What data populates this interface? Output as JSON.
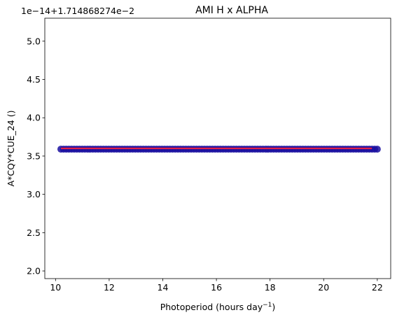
{
  "chart_data": {
    "type": "scatter",
    "title": "AMI H x ALPHA",
    "xlabel": "Photoperiod (hours day",
    "xlabel_sup": "−1",
    "xlabel_suffix": ")",
    "ylabel": "A*CQY*CUE_24 ()",
    "y_offset_text": "1e−14+1.714868274e−2",
    "xlim": [
      9.6,
      22.5
    ],
    "ylim": [
      1.9,
      5.3
    ],
    "x_ticks": [
      10,
      12,
      14,
      16,
      18,
      20,
      22
    ],
    "x_tick_labels": [
      "10",
      "12",
      "14",
      "16",
      "18",
      "20",
      "22"
    ],
    "y_ticks": [
      2.0,
      2.5,
      3.0,
      3.5,
      4.0,
      4.5,
      5.0
    ],
    "y_tick_labels": [
      "2.0",
      "2.5",
      "3.0",
      "3.5",
      "4.0",
      "4.5",
      "5.0"
    ],
    "grid": false,
    "legend": "none",
    "series": [
      {
        "kind": "points",
        "color": "#1a0fa0",
        "x_start": 10.2,
        "x_end": 22.0,
        "count": 120,
        "y": 3.59
      },
      {
        "kind": "fit-line",
        "color": "#e0204a",
        "x": [
          10.2,
          21.8
        ],
        "y": [
          3.6,
          3.6
        ]
      }
    ]
  }
}
